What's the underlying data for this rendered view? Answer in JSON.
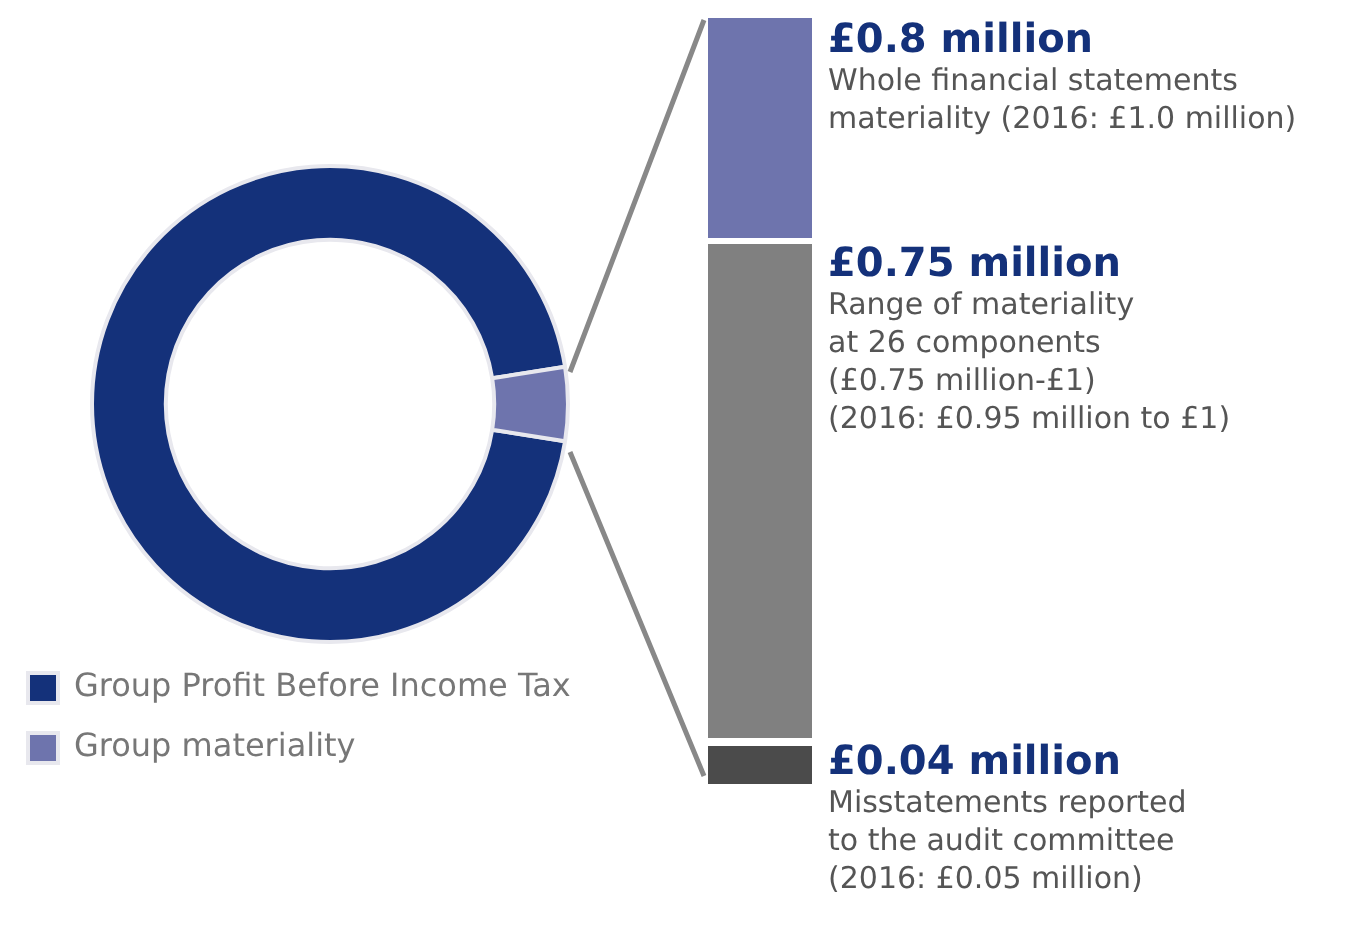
{
  "chart_data": {
    "type": "donut",
    "categories": [
      "Group Profit Before Income Tax",
      "Group materiality"
    ],
    "values": [
      95,
      5
    ],
    "colors": [
      "#14317a",
      "#6e74ad"
    ],
    "legend": "bottom left",
    "annotations": [
      "£0.8 million",
      "Whole financial statements\nmateriality (2016: £1.0 million)",
      "£0.75 million",
      "Range of materiality\nat 26 components\n(£0.75 million-£1)\n(2016: £0.95 million to £1)",
      "£0.04 million",
      "Misstatements reported\nto the audit committee\n(2016: £0.05 million)"
    ]
  }
}
